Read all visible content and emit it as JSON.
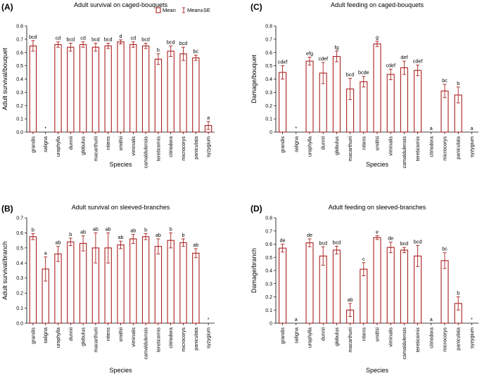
{
  "chart_data": [
    {
      "type": "bar",
      "panel_label": "(A)",
      "title": "Adult survival on caged-bouquets",
      "xlabel": "Species",
      "ylabel": "Adult survival/bouquet",
      "ylim": [
        0,
        0.8
      ],
      "yticks": [
        "0.0",
        "0.1",
        "0.2",
        "0.3",
        "0.4",
        "0.5",
        "0.6",
        "0.7",
        "0.8"
      ],
      "categories": [
        "grandis",
        "saligna",
        "urophylla",
        "dunnii",
        "globulus",
        "macarthurii",
        "nitens",
        "smithii",
        "viminalis",
        "camaldulensis",
        "tereticornis",
        "citriodora",
        "microcorys",
        "paniculata",
        "syzygium"
      ],
      "values": [
        0.65,
        0.0,
        0.66,
        0.64,
        0.66,
        0.64,
        0.65,
        0.68,
        0.66,
        0.65,
        0.55,
        0.61,
        0.59,
        0.56,
        0.05
      ],
      "se": [
        0.04,
        0.0,
        0.02,
        0.03,
        0.02,
        0.03,
        0.02,
        0.015,
        0.02,
        0.02,
        0.04,
        0.04,
        0.05,
        0.02,
        0.03
      ],
      "letters": [
        "bcd",
        "*",
        "cd",
        "bcd",
        "cd",
        "bcd",
        "bcd",
        "d",
        "cd",
        "bcd",
        "b",
        "bcd",
        "bcd",
        "bc",
        "a"
      ],
      "legend": {
        "mean": "Mean",
        "se": "Mean±SE"
      }
    },
    {
      "type": "bar",
      "panel_label": "(B)",
      "title": "Adult survival on sleeved-branches",
      "xlabel": "Species",
      "ylabel": "Adult survival/branch",
      "ylim": [
        0,
        0.7
      ],
      "yticks": [
        "0.0",
        "0.1",
        "0.2",
        "0.3",
        "0.4",
        "0.5",
        "0.6",
        "0.7"
      ],
      "categories": [
        "grandis",
        "saligna",
        "urophylla",
        "dunnii",
        "globulus",
        "macarthurii",
        "nitens",
        "smithii",
        "viminalis",
        "camaldulensis",
        "tereticornis",
        "citriodora",
        "microcorys",
        "paniculata",
        "syzygium"
      ],
      "values": [
        0.575,
        0.36,
        0.46,
        0.54,
        0.53,
        0.5,
        0.5,
        0.52,
        0.56,
        0.575,
        0.51,
        0.55,
        0.535,
        0.465,
        0.0
      ],
      "se": [
        0.02,
        0.08,
        0.05,
        0.025,
        0.05,
        0.1,
        0.1,
        0.025,
        0.03,
        0.02,
        0.05,
        0.05,
        0.025,
        0.03,
        0.0
      ],
      "letters": [
        "b",
        "a",
        "ab",
        "b",
        "ab",
        "ab",
        "ab",
        "ab",
        "ab",
        "b",
        "ab",
        "b",
        "b",
        "ab",
        "*"
      ]
    },
    {
      "type": "bar",
      "panel_label": "(C)",
      "title": "Adult feeding on caged-bouquets",
      "xlabel": "Species",
      "ylabel": "Damage/bouquet",
      "ylim": [
        0,
        0.8
      ],
      "yticks": [
        "0",
        "0.1",
        "0.2",
        "0.3",
        "0.4",
        "0.5",
        "0.6",
        "0.7",
        "0.8"
      ],
      "categories": [
        "grandis",
        "saligna",
        "urophylla",
        "dunnii",
        "globulus",
        "macarthurii",
        "nitens",
        "smithii",
        "viminalis",
        "camaldulensis",
        "tereticornis",
        "citriodora",
        "microcorys",
        "paniculata",
        "syzygium"
      ],
      "values": [
        0.45,
        0.0,
        0.535,
        0.445,
        0.57,
        0.325,
        0.38,
        0.665,
        0.435,
        0.485,
        0.465,
        0.0,
        0.31,
        0.28,
        0.0
      ],
      "se": [
        0.05,
        0.0,
        0.03,
        0.08,
        0.04,
        0.08,
        0.04,
        0.02,
        0.04,
        0.05,
        0.04,
        0.0,
        0.05,
        0.06,
        0.0
      ],
      "letters": [
        "cdef",
        "*",
        "efg",
        "cdef",
        "fg",
        "bcd",
        "bcde",
        "g",
        "cdef",
        "def",
        "cdef",
        "a",
        "bc",
        "b",
        "a"
      ]
    },
    {
      "type": "bar",
      "panel_label": "(D)",
      "title": "Adult feeding on sleeved-branches",
      "xlabel": "Species",
      "ylabel": "Damage/branch",
      "ylim": [
        0,
        0.8
      ],
      "yticks": [
        "0",
        "0.1",
        "0.2",
        "0.3",
        "0.4",
        "0.5",
        "0.6",
        "0.7",
        "0.8"
      ],
      "categories": [
        "grandis",
        "saligna",
        "urophylla",
        "dunnii",
        "globulus",
        "macarthurii",
        "nitens",
        "smithii",
        "viminalis",
        "camaldulensis",
        "tereticornis",
        "citriodora",
        "microcorys",
        "paniculata",
        "syzygium"
      ],
      "values": [
        0.57,
        0.0,
        0.61,
        0.51,
        0.555,
        0.1,
        0.41,
        0.65,
        0.575,
        0.555,
        0.51,
        0.0,
        0.475,
        0.15,
        0.0
      ],
      "se": [
        0.03,
        0.0,
        0.03,
        0.07,
        0.03,
        0.05,
        0.05,
        0.015,
        0.04,
        0.02,
        0.08,
        0.0,
        0.06,
        0.05,
        0.0
      ],
      "letters": [
        "de",
        "a",
        "de",
        "bcd",
        "bcd",
        "ab",
        "c",
        "e",
        "de",
        "bcd",
        "bcd",
        "a",
        "bc",
        "b",
        "*"
      ]
    }
  ]
}
